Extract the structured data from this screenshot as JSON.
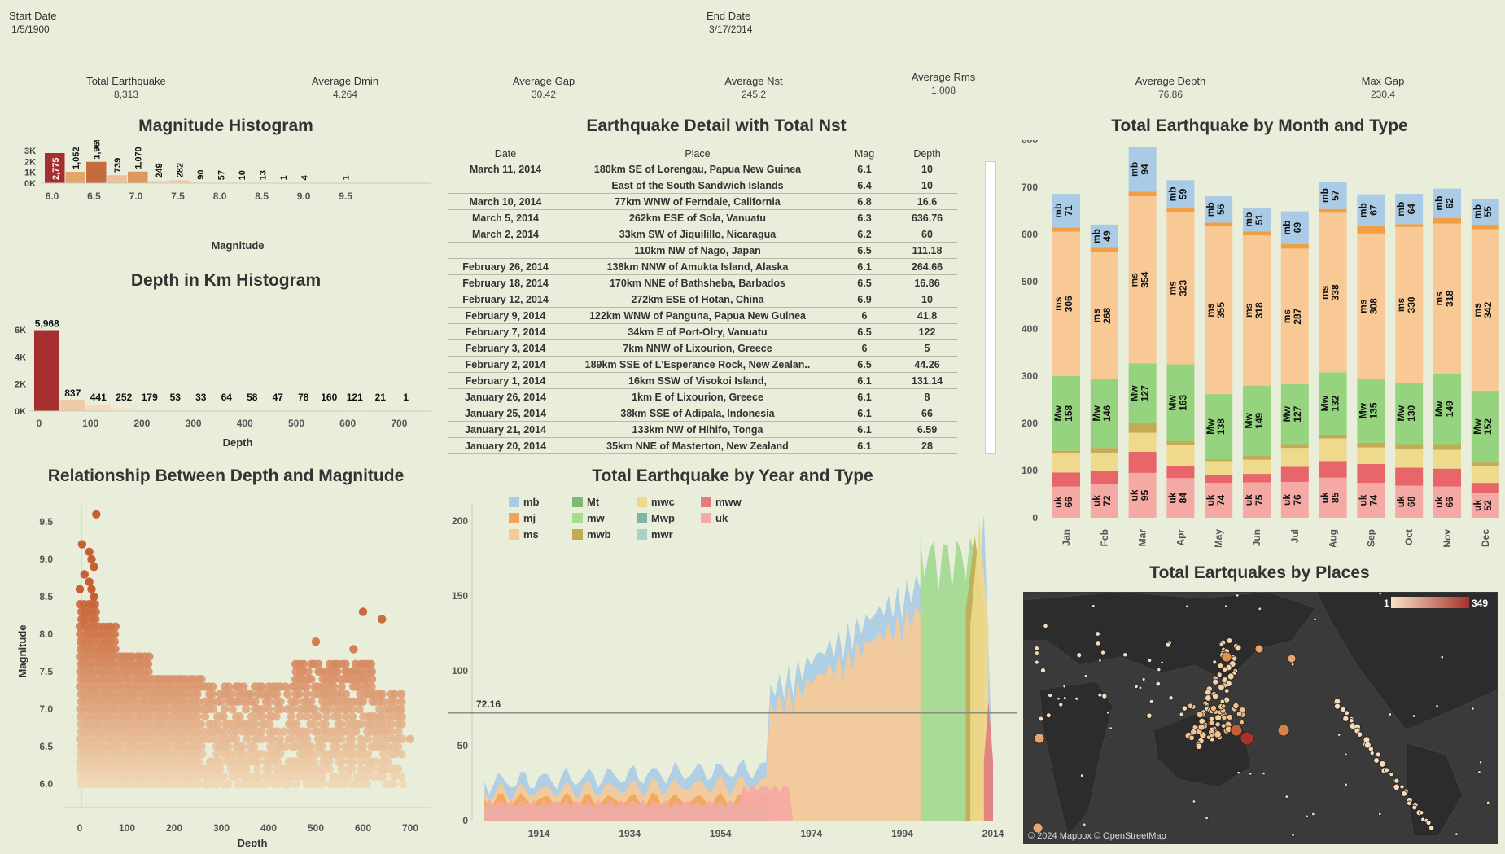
{
  "filters": {
    "start_label": "Start Date",
    "start_value": "1/5/1900",
    "end_label": "End Date",
    "end_value": "3/17/2014"
  },
  "kpis": [
    {
      "label": "Total Earthquake",
      "value": "8,313"
    },
    {
      "label": "Average Dmin",
      "value": "4.264"
    },
    {
      "label": "Average Gap",
      "value": "30.42"
    },
    {
      "label": "Average Nst",
      "value": "245.2"
    },
    {
      "label": "Average Rms",
      "value": "1.008"
    },
    {
      "label": "Average Depth",
      "value": "76.86"
    },
    {
      "label": "Max Gap",
      "value": "230.4"
    }
  ],
  "titles": {
    "mag_hist": "Magnitude Histogram",
    "depth_hist": "Depth in Km Histogram",
    "scatter": "Relationship Between Depth and Magnitude",
    "detail": "Earthquake Detail with Total Nst",
    "year_type": "Total Earthquake by Year and Type",
    "month_type": "Total Earthquake by Month and Type",
    "map": "Total Eartquakes by Places"
  },
  "detail_table": {
    "headers": [
      "Date",
      "Place",
      "Mag",
      "Depth"
    ],
    "rows": [
      [
        "March 11, 2014",
        "180km SE of Lorengau, Papua New Guinea",
        "6.1",
        "10"
      ],
      [
        "",
        "East of the South Sandwich Islands",
        "6.4",
        "10"
      ],
      [
        "March 10, 2014",
        "77km WNW of Ferndale, California",
        "6.8",
        "16.6"
      ],
      [
        "March 5, 2014",
        "262km ESE of Sola, Vanuatu",
        "6.3",
        "636.76"
      ],
      [
        "March 2, 2014",
        "33km SW of Jiquilillo, Nicaragua",
        "6.2",
        "60"
      ],
      [
        "",
        "110km NW of Nago, Japan",
        "6.5",
        "111.18"
      ],
      [
        "February 26, 2014",
        "138km NNW of Amukta Island, Alaska",
        "6.1",
        "264.66"
      ],
      [
        "February 18, 2014",
        "170km NNE of Bathsheba, Barbados",
        "6.5",
        "16.86"
      ],
      [
        "February 12, 2014",
        "272km ESE of Hotan, China",
        "6.9",
        "10"
      ],
      [
        "February 9, 2014",
        "122km WNW of Panguna, Papua New Guinea",
        "6",
        "41.8"
      ],
      [
        "February 7, 2014",
        "34km E of Port-Olry, Vanuatu",
        "6.5",
        "122"
      ],
      [
        "February 3, 2014",
        "7km NNW of Lixourion, Greece",
        "6",
        "5"
      ],
      [
        "February 2, 2014",
        "189km SSE of L'Esperance Rock, New Zealan..",
        "6.5",
        "44.26"
      ],
      [
        "February 1, 2014",
        "16km SSW of Visokoi Island,",
        "6.1",
        "131.14"
      ],
      [
        "January 26, 2014",
        "1km E of Lixourion, Greece",
        "6.1",
        "8"
      ],
      [
        "January 25, 2014",
        "38km SSE of Adipala, Indonesia",
        "6.1",
        "66"
      ],
      [
        "January 21, 2014",
        "133km NW of Hihifo, Tonga",
        "6.1",
        "6.59"
      ],
      [
        "January 20, 2014",
        "35km NNE of Masterton, New Zealand",
        "6.1",
        "28"
      ]
    ]
  },
  "map": {
    "credit": "© 2024 Mapbox © OpenStreetMap",
    "legend_min": "1",
    "legend_max": "349"
  },
  "chart_data": [
    {
      "id": "mag_hist",
      "type": "bar",
      "xlabel": "Magnitude",
      "x_ticks": [
        "6.0",
        "6.5",
        "7.0",
        "7.5",
        "8.0",
        "8.5",
        "9.0",
        "9.5"
      ],
      "y_ticks": [
        "0K",
        "1K",
        "2K",
        "3K"
      ],
      "bins": [
        6.0,
        6.25,
        6.5,
        6.75,
        7.0,
        7.25,
        7.5,
        7.75,
        8.0,
        8.25,
        8.5,
        8.75,
        9.0,
        9.25,
        9.5
      ],
      "values": [
        2775,
        1052,
        1969,
        739,
        1070,
        249,
        282,
        90,
        57,
        10,
        13,
        1,
        4,
        0,
        1
      ],
      "labels": [
        "2,775",
        "1,052",
        "1,969",
        "739",
        "1,070",
        "249",
        "282",
        "90",
        "57",
        "10",
        "13",
        "1",
        "4",
        "",
        "1"
      ]
    },
    {
      "id": "depth_hist",
      "type": "bar",
      "xlabel": "Depth",
      "x_ticks": [
        "0",
        "100",
        "200",
        "300",
        "400",
        "500",
        "600",
        "700"
      ],
      "y_ticks": [
        "0K",
        "2K",
        "4K",
        "6K"
      ],
      "values": [
        5968,
        837,
        441,
        252,
        179,
        53,
        33,
        64,
        58,
        47,
        78,
        160,
        121,
        21,
        1
      ],
      "labels": [
        "5,968",
        "837",
        "441",
        "252",
        "179",
        "53",
        "33",
        "64",
        "58",
        "47",
        "78",
        "160",
        "121",
        "21",
        "1"
      ]
    },
    {
      "id": "scatter",
      "type": "scatter",
      "xlabel": "Depth",
      "ylabel": "Magnitude",
      "x_ticks": [
        "0",
        "100",
        "200",
        "300",
        "400",
        "500",
        "600",
        "700"
      ],
      "y_ticks": [
        "6.0",
        "6.5",
        "7.0",
        "7.5",
        "8.0",
        "8.5",
        "9.0",
        "9.5"
      ],
      "outliers": [
        [
          35,
          9.6
        ],
        [
          5,
          9.2
        ],
        [
          20,
          9.1
        ],
        [
          25,
          9.0
        ],
        [
          30,
          8.9
        ],
        [
          10,
          8.8
        ],
        [
          20,
          8.7
        ],
        [
          25,
          8.6
        ],
        [
          0,
          8.6
        ],
        [
          30,
          8.5
        ],
        [
          600,
          8.3
        ],
        [
          640,
          8.2
        ],
        [
          500,
          7.9
        ],
        [
          580,
          7.8
        ],
        [
          700,
          6.6
        ]
      ]
    },
    {
      "id": "year_type",
      "type": "area",
      "y_ticks": [
        "0",
        "50",
        "100",
        "150",
        "200"
      ],
      "x_ticks": [
        "1914",
        "1934",
        "1954",
        "1974",
        "1994",
        "2014"
      ],
      "reference": {
        "label": "72.16",
        "value": 72.16
      },
      "legend": [
        {
          "name": "mb",
          "color": "#a9cbe6"
        },
        {
          "name": "Mt",
          "color": "#7fb873"
        },
        {
          "name": "mwc",
          "color": "#efd98c"
        },
        {
          "name": "mww",
          "color": "#e57b7b"
        },
        {
          "name": "mj",
          "color": "#f1a557"
        },
        {
          "name": "mw",
          "color": "#a8dc8f"
        },
        {
          "name": "Mwp",
          "color": "#7fb3a4"
        },
        {
          "name": "uk",
          "color": "#f4a9a4"
        },
        {
          "name": "ms",
          "color": "#f8c995"
        },
        {
          "name": "mwb",
          "color": "#c2ab52"
        },
        {
          "name": "mwr",
          "color": "#a9d2c6"
        }
      ]
    },
    {
      "id": "month_type",
      "type": "bar",
      "categories": [
        "Jan",
        "Feb",
        "Mar",
        "Apr",
        "May",
        "Jun",
        "Jul",
        "Aug",
        "Sep",
        "Oct",
        "Nov",
        "Dec"
      ],
      "y_ticks": [
        "0",
        "100",
        "200",
        "300",
        "400",
        "500",
        "600",
        "700",
        "800"
      ],
      "series": [
        {
          "name": "uk",
          "values": [
            66,
            72,
            95,
            84,
            74,
            75,
            76,
            85,
            74,
            68,
            66,
            52
          ]
        },
        {
          "name": "mww",
          "values": [
            30,
            28,
            45,
            25,
            16,
            18,
            32,
            35,
            40,
            38,
            38,
            22
          ]
        },
        {
          "name": "mwc",
          "values": [
            40,
            38,
            40,
            45,
            30,
            30,
            40,
            48,
            35,
            40,
            40,
            35
          ]
        },
        {
          "name": "mwb",
          "values": [
            6,
            10,
            20,
            8,
            4,
            8,
            8,
            8,
            10,
            10,
            12,
            8
          ]
        },
        {
          "name": "Mw",
          "values": [
            158,
            146,
            127,
            163,
            138,
            149,
            127,
            132,
            135,
            130,
            149,
            152
          ]
        },
        {
          "name": "ms",
          "values": [
            306,
            268,
            354,
            323,
            355,
            318,
            287,
            338,
            308,
            330,
            318,
            342
          ]
        },
        {
          "name": "mj",
          "values": [
            9,
            10,
            10,
            8,
            8,
            8,
            10,
            8,
            16,
            6,
            12,
            10
          ]
        },
        {
          "name": "mb",
          "values": [
            71,
            49,
            94,
            59,
            56,
            51,
            69,
            57,
            67,
            64,
            62,
            55
          ]
        }
      ]
    }
  ]
}
